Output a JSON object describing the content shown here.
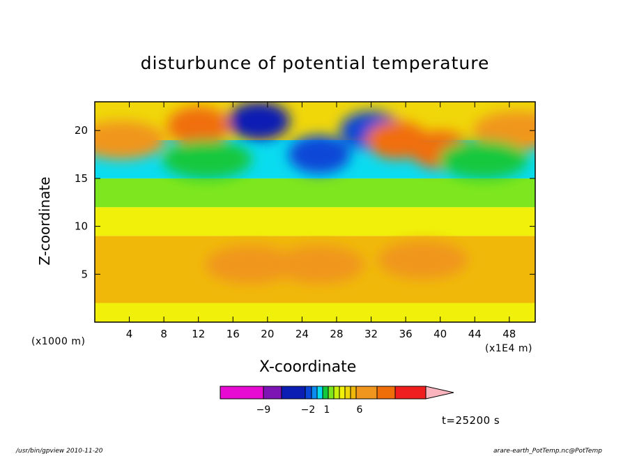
{
  "title": "disturbunce of potential temperature",
  "xlabel": "X-coordinate",
  "ylabel": "Z-coordinate",
  "x_unit_left": "(x1000 m)",
  "x_unit_right": "(x1E4 m)",
  "time_label": "t=25200 s",
  "footer_left": "/usr/bin/gpview  2010-11-20",
  "footer_right": "arare-earth_PotTemp.nc@PotTemp",
  "chart_data": {
    "type": "heatmap",
    "title": "disturbunce of potential temperature",
    "xlabel": "X-coordinate",
    "ylabel": "Z-coordinate",
    "xlim": [
      0,
      51
    ],
    "ylim": [
      0,
      23
    ],
    "xticks": [
      4,
      8,
      12,
      16,
      20,
      24,
      28,
      32,
      36,
      40,
      44,
      48
    ],
    "yticks": [
      5,
      10,
      15,
      20
    ],
    "grid": false,
    "colorbar": {
      "position": "bottom",
      "ticks": [
        {
          "value": -9,
          "label": "−9"
        },
        {
          "value": -2,
          "label": "−2"
        },
        {
          "value": 1,
          "label": "1"
        },
        {
          "value": 6,
          "label": "6"
        }
      ],
      "levels": [
        -15,
        -12,
        -9,
        -6,
        -4,
        -3,
        -2,
        -1,
        0,
        1,
        2,
        3,
        4,
        6,
        9,
        12,
        15
      ],
      "colors": [
        "#e60ad2",
        "#7d14b4",
        "#0a1eb4",
        "#0a46d7",
        "#0a8cf0",
        "#0adcf0",
        "#14c83c",
        "#7de61e",
        "#c8f00a",
        "#f0f00a",
        "#f0d70a",
        "#f0b90a",
        "#f0961e",
        "#f06e0a",
        "#f01e1e",
        "#fa8278",
        "#fab4be"
      ]
    },
    "field_bands": [
      {
        "z_range": [
          0,
          2
        ],
        "value": 1.5
      },
      {
        "z_range": [
          2,
          9
        ],
        "value": 3
      },
      {
        "z_range": [
          9,
          12
        ],
        "value": 1
      },
      {
        "z_range": [
          12,
          15
        ],
        "value": -0.5
      },
      {
        "z_range": [
          15,
          19
        ],
        "value": -3
      },
      {
        "z_range": [
          19,
          23
        ],
        "value": 2
      }
    ],
    "features": [
      {
        "x": 18,
        "z": 6,
        "value": 4
      },
      {
        "x": 26,
        "z": 6,
        "value": 4
      },
      {
        "x": 38,
        "z": 6.5,
        "value": 4
      },
      {
        "x": 19,
        "z": 21,
        "value": -9
      },
      {
        "x": 26,
        "z": 17.5,
        "value": -6
      },
      {
        "x": 32,
        "z": 20,
        "value": -6
      },
      {
        "x": 12,
        "z": 20.5,
        "value": 6
      },
      {
        "x": 35,
        "z": 19,
        "value": 6
      },
      {
        "x": 40,
        "z": 18,
        "value": 6
      },
      {
        "x": 49,
        "z": 20,
        "value": 4
      },
      {
        "x": 3,
        "z": 19,
        "value": 4
      },
      {
        "x": 13,
        "z": 17,
        "value": -2
      },
      {
        "x": 45,
        "z": 17,
        "value": -2
      }
    ]
  }
}
